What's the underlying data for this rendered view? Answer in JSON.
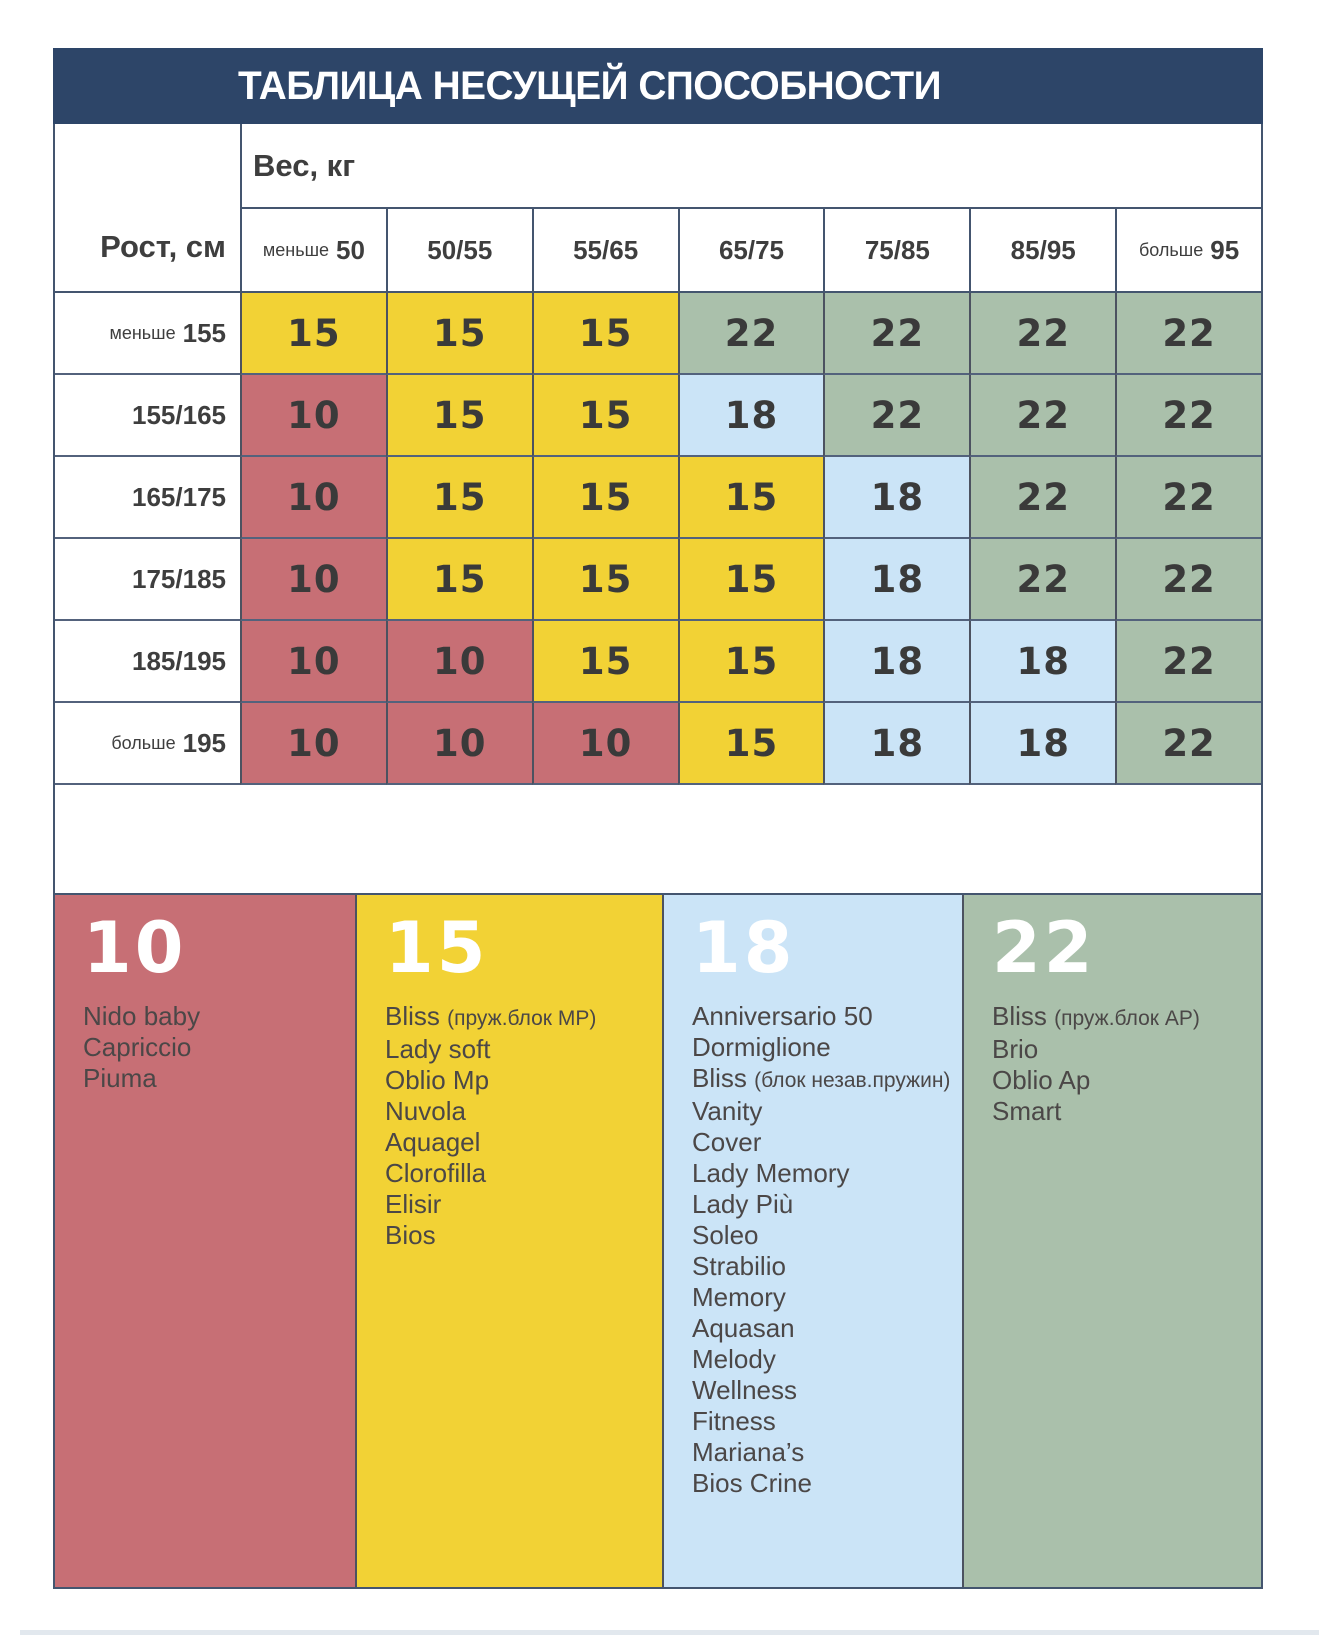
{
  "title": "ТАБЛИЦА НЕСУЩЕЙ СПОСОБНОСТИ",
  "axes": {
    "weight": "Вес, кг",
    "height": "Рост, см"
  },
  "colors": {
    "r": "#c76f75",
    "y": "#f2d235",
    "b": "#cbe4f7",
    "g": "#aac0ab",
    "navy": "#2d4568"
  },
  "chart_data": {
    "type": "table",
    "title": "ТАБЛИЦА НЕСУЩЕЙ СПОСОБНОСТИ",
    "weight_columns": [
      {
        "prefix": "меньше",
        "label": "50"
      },
      {
        "prefix": "",
        "label": "50/55"
      },
      {
        "prefix": "",
        "label": "55/65"
      },
      {
        "prefix": "",
        "label": "65/75"
      },
      {
        "prefix": "",
        "label": "75/85"
      },
      {
        "prefix": "",
        "label": "85/95"
      },
      {
        "prefix": "больше",
        "label": "95"
      }
    ],
    "height_rows": [
      {
        "prefix": "меньше",
        "label": "155"
      },
      {
        "prefix": "",
        "label": "155/165"
      },
      {
        "prefix": "",
        "label": "165/175"
      },
      {
        "prefix": "",
        "label": "175/185"
      },
      {
        "prefix": "",
        "label": "185/195"
      },
      {
        "prefix": "больше",
        "label": "195"
      }
    ],
    "values": [
      [
        15,
        15,
        15,
        22,
        22,
        22,
        22
      ],
      [
        10,
        15,
        15,
        18,
        22,
        22,
        22
      ],
      [
        10,
        15,
        15,
        15,
        18,
        22,
        22
      ],
      [
        10,
        15,
        15,
        15,
        18,
        22,
        22
      ],
      [
        10,
        10,
        15,
        15,
        18,
        18,
        22
      ],
      [
        10,
        10,
        10,
        15,
        18,
        18,
        22
      ]
    ],
    "cell_colors": [
      [
        "y",
        "y",
        "y",
        "g",
        "g",
        "g",
        "g"
      ],
      [
        "r",
        "y",
        "y",
        "b",
        "g",
        "g",
        "g"
      ],
      [
        "r",
        "y",
        "y",
        "y",
        "b",
        "g",
        "g"
      ],
      [
        "r",
        "y",
        "y",
        "y",
        "b",
        "g",
        "g"
      ],
      [
        "r",
        "r",
        "y",
        "y",
        "b",
        "b",
        "g"
      ],
      [
        "r",
        "r",
        "r",
        "y",
        "b",
        "b",
        "g"
      ]
    ]
  },
  "legend": [
    {
      "value": "10",
      "color": "r",
      "items": [
        "Nido baby",
        "Capriccio",
        "Piuma"
      ]
    },
    {
      "value": "15",
      "color": "y",
      "items": [
        "Bliss (пруж.блок MP)",
        "Lady soft",
        "Oblio Mp",
        "Nuvola",
        "Aquagel",
        "Clorofilla",
        "Elisir",
        "Bios"
      ]
    },
    {
      "value": "18",
      "color": "b",
      "items": [
        "Anniversario 50",
        "Dormiglione",
        "Bliss (блок незав.пружин)",
        "Vanity",
        "Cover",
        "Lady Memory",
        "Lady Più",
        "Soleo",
        "Strabilio",
        "Memory",
        "Aquasan",
        "Melody",
        "Wellness",
        "Fitness",
        "Mariana’s",
        "Bios Crine"
      ]
    },
    {
      "value": "22",
      "color": "g",
      "items": [
        "Bliss (пруж.блок AP)",
        "Brio",
        "Oblio Ap",
        "Smart"
      ]
    }
  ]
}
